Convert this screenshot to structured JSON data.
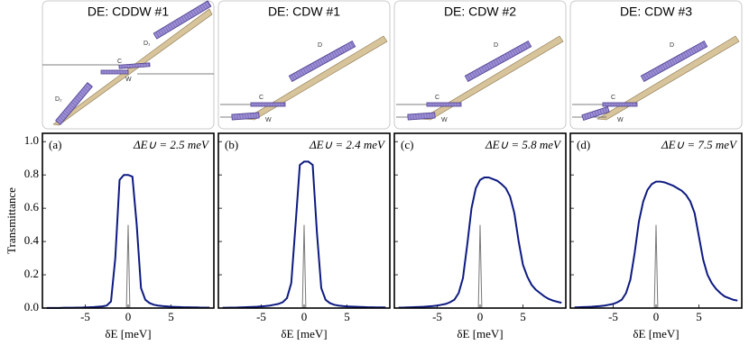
{
  "chart_data": [
    {
      "type": "line",
      "title": "DE: CDDW #1",
      "panel_label": "(a)",
      "annotation": "ΔE∪ = 2.5 meV",
      "diagram_labels": [
        "D₁",
        "C",
        "W",
        "D₂"
      ],
      "xlabel": "δE [meV]",
      "ylabel": "Transmittance",
      "xlim": [
        -10,
        10
      ],
      "ylim": [
        0,
        1.05
      ],
      "xticks": [
        -5,
        0,
        5
      ],
      "yticks": [
        {
          "value": 0,
          "label": "0.0"
        },
        {
          "value": 0.2,
          "label": "0.2"
        },
        {
          "value": 0.4,
          "label": "0.4"
        },
        {
          "value": 0.6,
          "label": "0.6"
        },
        {
          "value": 0.8,
          "label": "0.8"
        },
        {
          "value": 1,
          "label": "1.0"
        }
      ],
      "series": [
        {
          "color": "#0d1a80",
          "x": [
            -9.5,
            -9,
            -8.5,
            -8,
            -7.5,
            -7,
            -6.5,
            -6,
            -5.5,
            -5,
            -4.5,
            -4,
            -3.5,
            -3,
            -2.5,
            -2,
            -1.5,
            -1,
            -0.5,
            0,
            0.5,
            1,
            1.5,
            2,
            2.5,
            3,
            3.5,
            4,
            4.5,
            5,
            5.5,
            6,
            6.5,
            7,
            7.5,
            8,
            8.5,
            9,
            9.5
          ],
          "values": [
            0.001,
            0.001,
            0.001,
            0.001,
            0.002,
            0.002,
            0.002,
            0.003,
            0.003,
            0.004,
            0.005,
            0.006,
            0.008,
            0.01,
            0.015,
            0.04,
            0.3,
            0.77,
            0.8,
            0.8,
            0.79,
            0.5,
            0.12,
            0.05,
            0.03,
            0.02,
            0.015,
            0.012,
            0.01,
            0.008,
            0.007,
            0.006,
            0.005,
            0.005,
            0.004,
            0.004,
            0.003,
            0.003,
            0.003
          ]
        },
        {
          "color": "#777777",
          "x": [
            -0.2,
            0,
            0.2
          ],
          "values": [
            0,
            0.5,
            0
          ]
        }
      ]
    },
    {
      "type": "line",
      "title": "DE: CDW #1",
      "panel_label": "(b)",
      "annotation": "ΔE∪ = 2.4 meV",
      "diagram_labels": [
        "D",
        "C",
        "W"
      ],
      "xlabel": "δE [meV]",
      "xlim": [
        -10,
        10
      ],
      "ylim": [
        0,
        1.05
      ],
      "xticks": [
        -5,
        0,
        5
      ],
      "series": [
        {
          "color": "#0d1a80",
          "x": [
            -9.5,
            -9,
            -8.5,
            -8,
            -7.5,
            -7,
            -6.5,
            -6,
            -5.5,
            -5,
            -4.5,
            -4,
            -3.5,
            -3,
            -2.5,
            -2,
            -1.5,
            -1,
            -0.5,
            0,
            0.5,
            1,
            1.5,
            2,
            2.5,
            3,
            3.5,
            4,
            4.5,
            5,
            5.5,
            6,
            6.5,
            7,
            7.5,
            8,
            8.5,
            9,
            9.5
          ],
          "values": [
            0.002,
            0.002,
            0.003,
            0.003,
            0.004,
            0.005,
            0.006,
            0.007,
            0.008,
            0.01,
            0.012,
            0.015,
            0.02,
            0.025,
            0.035,
            0.06,
            0.15,
            0.5,
            0.86,
            0.88,
            0.88,
            0.86,
            0.45,
            0.12,
            0.05,
            0.03,
            0.02,
            0.015,
            0.012,
            0.01,
            0.009,
            0.008,
            0.007,
            0.006,
            0.005,
            0.005,
            0.004,
            0.004,
            0.004
          ]
        },
        {
          "color": "#777777",
          "x": [
            -0.2,
            0,
            0.2
          ],
          "values": [
            0,
            0.5,
            0
          ]
        }
      ]
    },
    {
      "type": "line",
      "title": "DE: CDW #2",
      "panel_label": "(c)",
      "annotation": "ΔE∪ = 5.8 meV",
      "diagram_labels": [
        "D",
        "C",
        "W"
      ],
      "xlabel": "δE [meV]",
      "xlim": [
        -10,
        10
      ],
      "ylim": [
        0,
        1.05
      ],
      "xticks": [
        -5,
        0,
        5
      ],
      "series": [
        {
          "color": "#0d1a80",
          "x": [
            -9.5,
            -9,
            -8.5,
            -8,
            -7.5,
            -7,
            -6.5,
            -6,
            -5.5,
            -5,
            -4.5,
            -4,
            -3.5,
            -3,
            -2.5,
            -2,
            -1.5,
            -1,
            -0.5,
            0,
            0.5,
            1,
            1.5,
            2,
            2.5,
            3,
            3.5,
            4,
            4.5,
            5,
            5.5,
            6,
            6.5,
            7,
            7.5,
            8,
            8.5,
            9,
            9.5
          ],
          "values": [
            0.003,
            0.003,
            0.004,
            0.005,
            0.006,
            0.007,
            0.008,
            0.01,
            0.012,
            0.015,
            0.02,
            0.025,
            0.035,
            0.05,
            0.09,
            0.18,
            0.38,
            0.6,
            0.72,
            0.77,
            0.785,
            0.785,
            0.775,
            0.765,
            0.745,
            0.72,
            0.67,
            0.57,
            0.4,
            0.26,
            0.19,
            0.14,
            0.11,
            0.09,
            0.07,
            0.055,
            0.045,
            0.038,
            0.032
          ]
        },
        {
          "color": "#777777",
          "x": [
            -0.2,
            0,
            0.2
          ],
          "values": [
            0,
            0.5,
            0
          ]
        }
      ]
    },
    {
      "type": "line",
      "title": "DE: CDW #3",
      "panel_label": "(d)",
      "annotation": "ΔE∪ = 7.5 meV",
      "diagram_labels": [
        "D",
        "C",
        "W"
      ],
      "xlabel": "δE [meV]",
      "xlim": [
        -10,
        10
      ],
      "ylim": [
        0,
        1.05
      ],
      "xticks": [
        -5,
        0,
        5
      ],
      "series": [
        {
          "color": "#0d1a80",
          "x": [
            -9.5,
            -9,
            -8.5,
            -8,
            -7.5,
            -7,
            -6.5,
            -6,
            -5.5,
            -5,
            -4.5,
            -4,
            -3.5,
            -3,
            -2.5,
            -2,
            -1.5,
            -1,
            -0.5,
            0,
            0.5,
            1,
            1.5,
            2,
            2.5,
            3,
            3.5,
            4,
            4.5,
            5,
            5.5,
            6,
            6.5,
            7,
            7.5,
            8,
            8.5,
            9,
            9.5
          ],
          "values": [
            0.004,
            0.005,
            0.006,
            0.007,
            0.008,
            0.01,
            0.012,
            0.015,
            0.02,
            0.025,
            0.035,
            0.05,
            0.09,
            0.17,
            0.33,
            0.52,
            0.64,
            0.71,
            0.745,
            0.76,
            0.76,
            0.755,
            0.745,
            0.735,
            0.72,
            0.705,
            0.68,
            0.64,
            0.57,
            0.43,
            0.29,
            0.2,
            0.15,
            0.115,
            0.09,
            0.07,
            0.06,
            0.05,
            0.045
          ]
        },
        {
          "color": "#777777",
          "x": [
            -0.2,
            0,
            0.2
          ],
          "values": [
            0,
            0.5,
            0
          ]
        }
      ]
    }
  ]
}
